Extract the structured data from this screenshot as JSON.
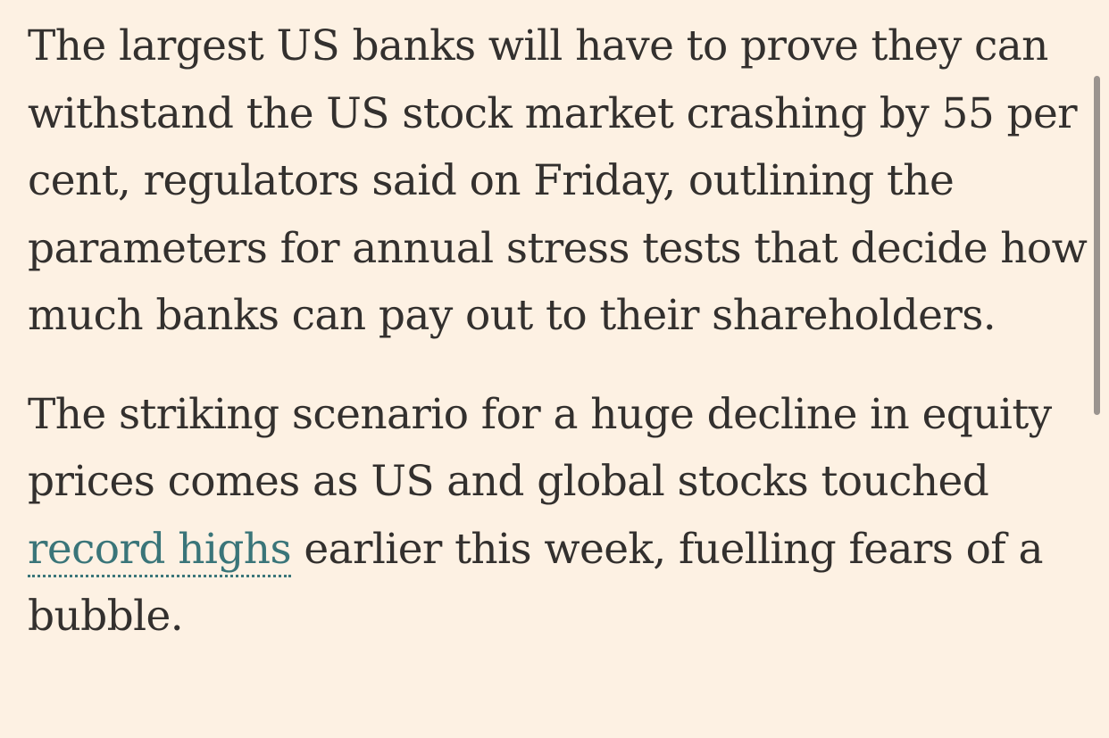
{
  "article": {
    "paragraph_1": "The largest US banks will have to prove they can withstand the US stock market crashing by 55 per cent, regulators said on Friday, outlining the parameters for annual stress tests that decide how much banks can pay out to their shareholders.",
    "paragraph_2_before_link": "The striking scenario for a huge decline in equity prices comes as US and global stocks touched ",
    "paragraph_2_link": "record highs",
    "paragraph_2_after_link": " earlier this week, fuelling fears of a bubble."
  },
  "colors": {
    "background": "#fdf1e3",
    "text": "#33302e",
    "link": "#3a7579",
    "scrollbar": "#9b948f"
  }
}
